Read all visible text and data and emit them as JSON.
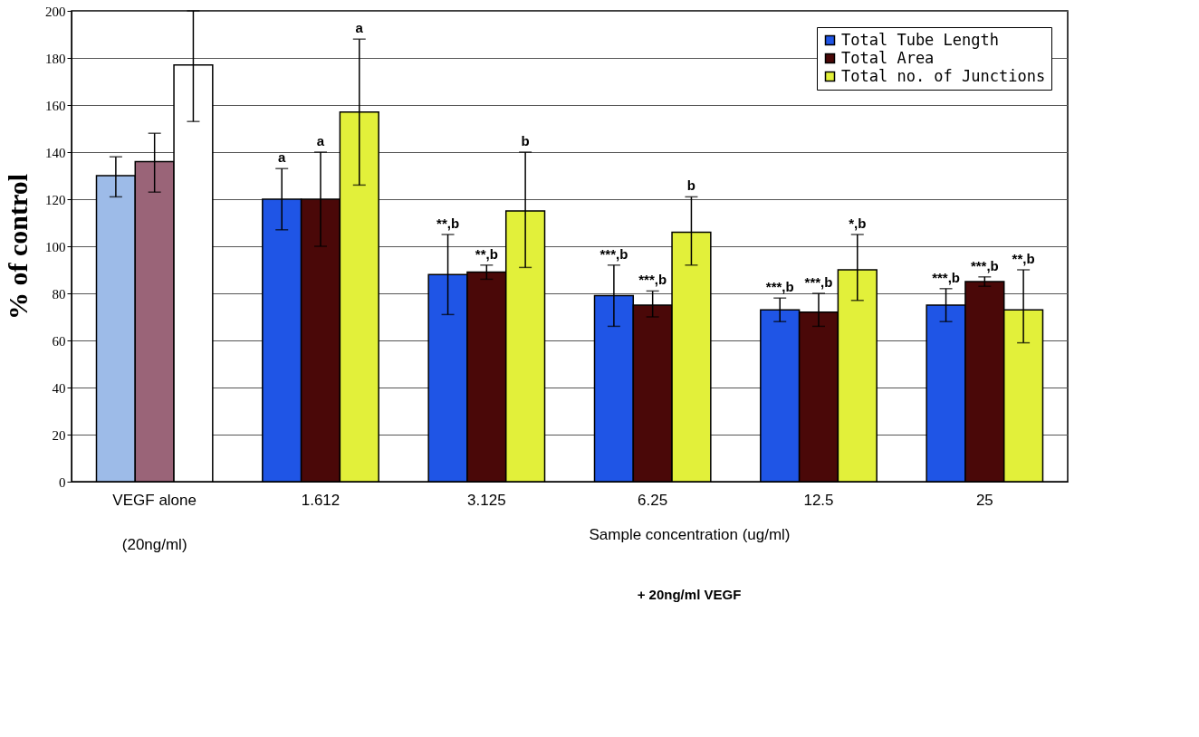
{
  "chart_data": {
    "type": "bar",
    "ylabel": "% of control",
    "xlabel": "Sample concentration (ug/ml)",
    "categories": [
      "VEGF alone",
      "1.612",
      "3.125",
      "6.25",
      "12.5",
      "25"
    ],
    "series": [
      {
        "name": "Total Tube Length",
        "color": "#1f55e6",
        "colors": [
          "#9dbbe8",
          "#1f55e6",
          "#1f55e6",
          "#1f55e6",
          "#1f55e6",
          "#1f55e6"
        ],
        "values": [
          130,
          120,
          88,
          79,
          73,
          75
        ],
        "errors": [
          [
            121,
            138
          ],
          [
            107,
            133
          ],
          [
            71,
            105
          ],
          [
            66,
            92
          ],
          [
            68,
            78
          ],
          [
            68,
            82
          ]
        ]
      },
      {
        "name": "Total Area",
        "color": "#4a0808",
        "colors": [
          "#9a6478",
          "#4a0808",
          "#4a0808",
          "#4a0808",
          "#4a0808",
          "#4a0808"
        ],
        "values": [
          136,
          120,
          89,
          75,
          72,
          85
        ],
        "errors": [
          [
            123,
            148
          ],
          [
            100,
            140
          ],
          [
            86,
            92
          ],
          [
            70,
            81
          ],
          [
            66,
            80
          ],
          [
            83,
            87
          ]
        ]
      },
      {
        "name": "Total no. of Junctions",
        "color": "#e2f03a",
        "colors": [
          "#ffffff",
          "#e2f03a",
          "#e2f03a",
          "#e2f03a",
          "#e2f03a",
          "#e2f03a"
        ],
        "values": [
          177,
          157,
          115,
          106,
          90,
          73
        ],
        "errors": [
          [
            153,
            200
          ],
          [
            126,
            188
          ],
          [
            91,
            140
          ],
          [
            92,
            121
          ],
          [
            77,
            105
          ],
          [
            59,
            90
          ]
        ]
      }
    ],
    "ylim": [
      0,
      200
    ],
    "yticks": [
      0,
      20,
      40,
      60,
      80,
      100,
      120,
      140,
      160,
      180,
      200
    ],
    "grid": "y",
    "legend": "top right",
    "annotations": [
      "a",
      "a",
      "a",
      "**,b",
      "**,b",
      "b",
      "***,b",
      "***,b",
      "b",
      "***,b",
      "***,b",
      "*,b",
      "***,b",
      "***,b",
      "**,b",
      "(20ng/ml)",
      "+ 20ng/ml VEGF"
    ]
  }
}
